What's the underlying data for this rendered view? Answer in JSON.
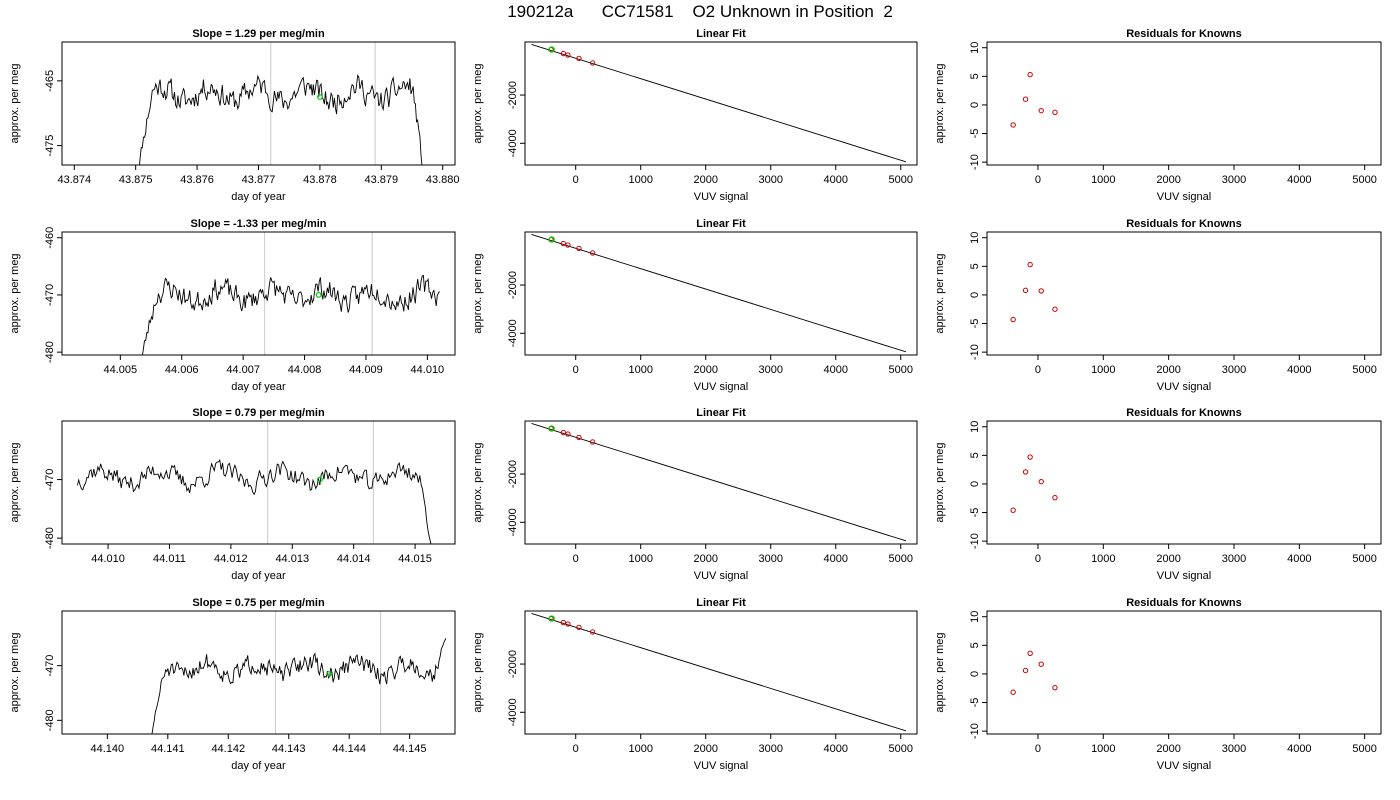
{
  "title": "190212a      CC71581    O2 Unknown in Position  2",
  "chart_data": [
    {
      "row": 0,
      "col": 0,
      "type": "line",
      "title": "Slope =  1.29  per meg/min",
      "xlabel": "day of year",
      "ylabel": "approx. per meg",
      "xlim": [
        43.8738,
        43.8802
      ],
      "ylim": [
        -478,
        -459
      ],
      "xticks": [
        43.874,
        43.875,
        43.876,
        43.877,
        43.878,
        43.879,
        43.88
      ],
      "xtick_labels": [
        "43.874",
        "43.875",
        "43.876",
        "43.877",
        "43.878",
        "43.879",
        "43.880"
      ],
      "yticks": [
        -465,
        -475
      ],
      "ytick_labels": [
        "-465",
        "-475"
      ],
      "vlines": [
        43.8772,
        43.8789
      ],
      "marker": {
        "x": 43.878,
        "y": -467.5
      },
      "series": {
        "x_start": 43.875,
        "x_end": 43.8797,
        "baseline": -467,
        "noise": 3.0,
        "ramp": "both",
        "seed": 11
      }
    },
    {
      "row": 0,
      "col": 1,
      "type": "scatter",
      "title": "Linear Fit",
      "xlabel": "VUV signal",
      "ylabel": "approx. per meg",
      "xlim": [
        -780,
        5250
      ],
      "ylim": [
        -4900,
        200
      ],
      "xticks": [
        0,
        1000,
        2000,
        3000,
        4000,
        5000
      ],
      "xtick_labels": [
        "0",
        "1000",
        "2000",
        "3000",
        "4000",
        "5000"
      ],
      "yticks": [
        -2000,
        -4000
      ],
      "ytick_labels": [
        "-2000",
        "-4000"
      ],
      "fit_line": {
        "x": [
          -680,
          5080
        ],
        "y": [
          100,
          -4770
        ]
      },
      "points": [
        {
          "x": -380,
          "y": -120
        },
        {
          "x": -190,
          "y": -280
        },
        {
          "x": -120,
          "y": -340
        },
        {
          "x": 50,
          "y": -480
        },
        {
          "x": 260,
          "y": -670
        }
      ],
      "highlight": {
        "x": -370,
        "y": -110
      }
    },
    {
      "row": 0,
      "col": 2,
      "type": "scatter",
      "title": "Residuals for Knowns",
      "xlabel": "VUV signal",
      "ylabel": "approx. per meg",
      "xlim": [
        -780,
        5250
      ],
      "ylim": [
        -10.5,
        11
      ],
      "xticks": [
        0,
        1000,
        2000,
        3000,
        4000,
        5000
      ],
      "xtick_labels": [
        "0",
        "1000",
        "2000",
        "3000",
        "4000",
        "5000"
      ],
      "yticks": [
        10,
        5,
        0,
        -5,
        -10
      ],
      "ytick_labels": [
        "10",
        "5",
        "0",
        "-5",
        "-10"
      ],
      "points": [
        {
          "x": -380,
          "y": -3.5
        },
        {
          "x": -190,
          "y": 1.0
        },
        {
          "x": -120,
          "y": 5.3
        },
        {
          "x": 50,
          "y": -1.0
        },
        {
          "x": 260,
          "y": -1.3
        }
      ]
    },
    {
      "row": 1,
      "col": 0,
      "type": "line",
      "title": "Slope =  -1.33  per meg/min",
      "xlabel": "day of year",
      "ylabel": "approx. per meg",
      "xlim": [
        44.00405,
        44.01045
      ],
      "ylim": [
        -480.5,
        -459
      ],
      "xticks": [
        44.005,
        44.006,
        44.007,
        44.008,
        44.009,
        44.01
      ],
      "xtick_labels": [
        "44.005",
        "44.006",
        "44.007",
        "44.008",
        "44.009",
        "44.010"
      ],
      "yticks": [
        -460,
        -470,
        -480
      ],
      "ytick_labels": [
        "-460",
        "-470",
        "-480"
      ],
      "vlines": [
        44.00735,
        44.0091
      ],
      "marker": {
        "x": 44.00823,
        "y": -470
      },
      "series": {
        "x_start": 44.0053,
        "x_end": 44.0102,
        "baseline": -470,
        "noise": 3.2,
        "ramp": "left",
        "seed": 23
      }
    },
    {
      "row": 1,
      "col": 1,
      "type": "scatter",
      "title": "Linear Fit",
      "xlabel": "VUV signal",
      "ylabel": "approx. per meg",
      "xlim": [
        -780,
        5250
      ],
      "ylim": [
        -4900,
        200
      ],
      "xticks": [
        0,
        1000,
        2000,
        3000,
        4000,
        5000
      ],
      "xtick_labels": [
        "0",
        "1000",
        "2000",
        "3000",
        "4000",
        "5000"
      ],
      "yticks": [
        -2000,
        -4000
      ],
      "ytick_labels": [
        "-2000",
        "-4000"
      ],
      "fit_line": {
        "x": [
          -680,
          5080
        ],
        "y": [
          100,
          -4770
        ]
      },
      "points": [
        {
          "x": -380,
          "y": -120
        },
        {
          "x": -190,
          "y": -280
        },
        {
          "x": -120,
          "y": -340
        },
        {
          "x": 50,
          "y": -480
        },
        {
          "x": 260,
          "y": -670
        }
      ],
      "highlight": {
        "x": -370,
        "y": -110
      }
    },
    {
      "row": 1,
      "col": 2,
      "type": "scatter",
      "title": "Residuals for Knowns",
      "xlabel": "VUV signal",
      "ylabel": "approx. per meg",
      "xlim": [
        -780,
        5250
      ],
      "ylim": [
        -10.5,
        11
      ],
      "xticks": [
        0,
        1000,
        2000,
        3000,
        4000,
        5000
      ],
      "xtick_labels": [
        "0",
        "1000",
        "2000",
        "3000",
        "4000",
        "5000"
      ],
      "yticks": [
        10,
        5,
        0,
        -5,
        -10
      ],
      "ytick_labels": [
        "10",
        "5",
        "0",
        "-5",
        "-10"
      ],
      "points": [
        {
          "x": -380,
          "y": -4.3
        },
        {
          "x": -190,
          "y": 0.8
        },
        {
          "x": -120,
          "y": 5.3
        },
        {
          "x": 50,
          "y": 0.7
        },
        {
          "x": 260,
          "y": -2.5
        }
      ]
    },
    {
      "row": 2,
      "col": 0,
      "type": "line",
      "title": "Slope =  0.79  per meg/min",
      "xlabel": "day of year",
      "ylabel": "approx. per meg",
      "xlim": [
        44.00925,
        44.01565
      ],
      "ylim": [
        -481,
        -460
      ],
      "xticks": [
        44.01,
        44.011,
        44.012,
        44.013,
        44.014,
        44.015
      ],
      "xtick_labels": [
        "44.010",
        "44.011",
        "44.012",
        "44.013",
        "44.014",
        "44.015"
      ],
      "yticks": [
        -470,
        -480
      ],
      "ytick_labels": [
        "-470",
        "-480"
      ],
      "vlines": [
        44.0126,
        44.01432
      ],
      "marker": {
        "x": 44.01345,
        "y": -470
      },
      "series": {
        "x_start": 44.0095,
        "x_end": 44.0153,
        "baseline": -469.5,
        "noise": 2.6,
        "ramp": "right",
        "seed": 37
      }
    },
    {
      "row": 2,
      "col": 1,
      "type": "scatter",
      "title": "Linear Fit",
      "xlabel": "VUV signal",
      "ylabel": "approx. per meg",
      "xlim": [
        -780,
        5250
      ],
      "ylim": [
        -4900,
        200
      ],
      "xticks": [
        0,
        1000,
        2000,
        3000,
        4000,
        5000
      ],
      "xtick_labels": [
        "0",
        "1000",
        "2000",
        "3000",
        "4000",
        "5000"
      ],
      "yticks": [
        -2000,
        -4000
      ],
      "ytick_labels": [
        "-2000",
        "-4000"
      ],
      "fit_line": {
        "x": [
          -680,
          5080
        ],
        "y": [
          100,
          -4770
        ]
      },
      "points": [
        {
          "x": -380,
          "y": -120
        },
        {
          "x": -190,
          "y": -280
        },
        {
          "x": -120,
          "y": -340
        },
        {
          "x": 50,
          "y": -480
        },
        {
          "x": 260,
          "y": -670
        }
      ],
      "highlight": {
        "x": -370,
        "y": -110
      }
    },
    {
      "row": 2,
      "col": 2,
      "type": "scatter",
      "title": "Residuals for Knowns",
      "xlabel": "VUV signal",
      "ylabel": "approx. per meg",
      "xlim": [
        -780,
        5250
      ],
      "ylim": [
        -10.5,
        11
      ],
      "xticks": [
        0,
        1000,
        2000,
        3000,
        4000,
        5000
      ],
      "xtick_labels": [
        "0",
        "1000",
        "2000",
        "3000",
        "4000",
        "5000"
      ],
      "yticks": [
        10,
        5,
        0,
        -5,
        -10
      ],
      "ytick_labels": [
        "10",
        "5",
        "0",
        "-5",
        "-10"
      ],
      "points": [
        {
          "x": -380,
          "y": -4.6
        },
        {
          "x": -190,
          "y": 2.1
        },
        {
          "x": -120,
          "y": 4.7
        },
        {
          "x": 50,
          "y": 0.4
        },
        {
          "x": 260,
          "y": -2.4
        }
      ]
    },
    {
      "row": 3,
      "col": 0,
      "type": "line",
      "title": "Slope =  0.75  per meg/min",
      "xlabel": "day of year",
      "ylabel": "approx. per meg",
      "xlim": [
        44.13925,
        44.14575
      ],
      "ylim": [
        -482.5,
        -460
      ],
      "xticks": [
        44.14,
        44.141,
        44.142,
        44.143,
        44.144,
        44.145
      ],
      "xtick_labels": [
        "44.140",
        "44.141",
        "44.142",
        "44.143",
        "44.144",
        "44.145"
      ],
      "yticks": [
        -470,
        -480
      ],
      "ytick_labels": [
        "-470",
        "-480"
      ],
      "vlines": [
        44.14278,
        44.14452
      ],
      "marker": {
        "x": 44.14367,
        "y": -471.5
      },
      "series": {
        "x_start": 44.1407,
        "x_end": 44.1456,
        "baseline": -470.5,
        "noise": 2.8,
        "ramp": "left",
        "seed": 51,
        "end_rise": -465
      }
    },
    {
      "row": 3,
      "col": 1,
      "type": "scatter",
      "title": "Linear Fit",
      "xlabel": "VUV signal",
      "ylabel": "approx. per meg",
      "xlim": [
        -780,
        5250
      ],
      "ylim": [
        -4900,
        200
      ],
      "xticks": [
        0,
        1000,
        2000,
        3000,
        4000,
        5000
      ],
      "xtick_labels": [
        "0",
        "1000",
        "2000",
        "3000",
        "4000",
        "5000"
      ],
      "yticks": [
        -2000,
        -4000
      ],
      "ytick_labels": [
        "-2000",
        "-4000"
      ],
      "fit_line": {
        "x": [
          -680,
          5080
        ],
        "y": [
          100,
          -4770
        ]
      },
      "points": [
        {
          "x": -380,
          "y": -120
        },
        {
          "x": -190,
          "y": -280
        },
        {
          "x": -120,
          "y": -340
        },
        {
          "x": 50,
          "y": -480
        },
        {
          "x": 260,
          "y": -670
        }
      ],
      "highlight": {
        "x": -370,
        "y": -110
      }
    },
    {
      "row": 3,
      "col": 2,
      "type": "scatter",
      "title": "Residuals for Knowns",
      "xlabel": "VUV signal",
      "ylabel": "approx. per meg",
      "xlim": [
        -780,
        5250
      ],
      "ylim": [
        -10.5,
        11
      ],
      "xticks": [
        0,
        1000,
        2000,
        3000,
        4000,
        5000
      ],
      "xtick_labels": [
        "0",
        "1000",
        "2000",
        "3000",
        "4000",
        "5000"
      ],
      "yticks": [
        10,
        5,
        0,
        -5,
        -10
      ],
      "ytick_labels": [
        "10",
        "5",
        "0",
        "-5",
        "-10"
      ],
      "points": [
        {
          "x": -380,
          "y": -3.2
        },
        {
          "x": -190,
          "y": 0.6
        },
        {
          "x": -120,
          "y": 3.6
        },
        {
          "x": 50,
          "y": 1.7
        },
        {
          "x": 260,
          "y": -2.4
        }
      ]
    }
  ],
  "colors": {
    "line": "#000000",
    "vline": "#c8c8c8",
    "highlight": "#00cc00",
    "residual": "#cc0000",
    "fit_points": "#cc0000"
  }
}
